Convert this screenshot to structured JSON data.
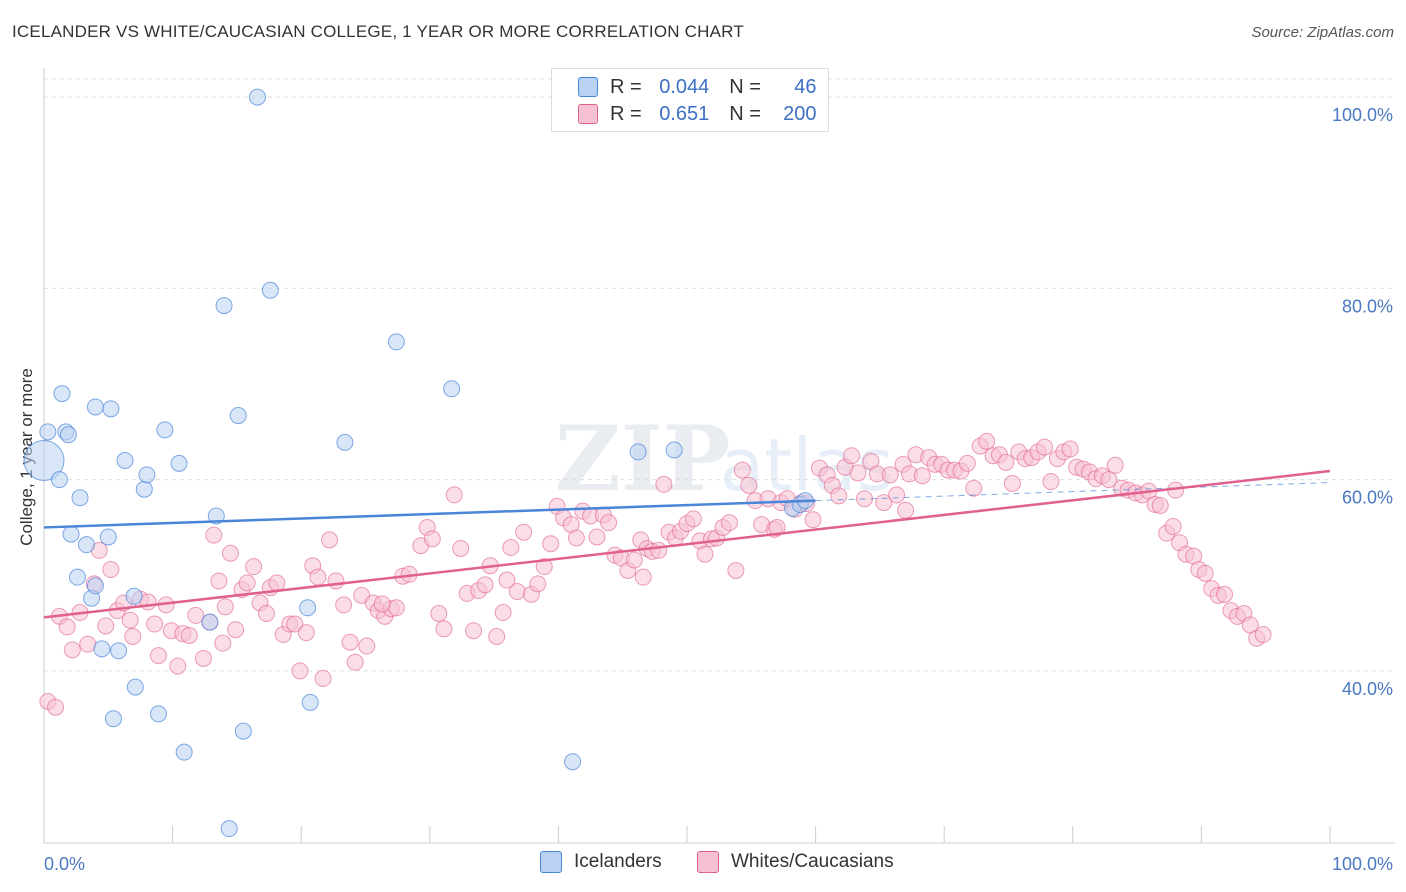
{
  "title": "ICELANDER VS WHITE/CAUCASIAN COLLEGE, 1 YEAR OR MORE CORRELATION CHART",
  "source": "Source: ZipAtlas.com",
  "colors": {
    "blue": "#4a86d8",
    "blue_fill": "#b9d1f2",
    "pink": "#e0608e",
    "pink_fill": "#f7c1d2",
    "tick_label": "#4a78c2"
  },
  "legend": {
    "blue": {
      "r_label": "R =",
      "r_value": "0.044",
      "n_label": "N =",
      "n_value": "46"
    },
    "pink": {
      "r_label": "R =",
      "r_value": "0.651",
      "n_label": "N =",
      "n_value": "200"
    }
  },
  "bottom_legend": {
    "blue": "Icelanders",
    "pink": "Whites/Caucasians"
  },
  "chart_data": {
    "type": "scatter",
    "title": "ICELANDER VS WHITE/CAUCASIAN COLLEGE, 1 YEAR OR MORE CORRELATION CHART",
    "xlabel": "",
    "ylabel": "College, 1 year or more",
    "xlim": [
      0,
      100
    ],
    "ylim": [
      22,
      102
    ],
    "x_tick_labels": [
      "0.0%",
      "100.0%"
    ],
    "y_ticks": [
      40,
      60,
      80,
      100
    ],
    "y_tick_labels": [
      "40.0%",
      "60.0%",
      "80.0%",
      "100.0%"
    ],
    "grid": true,
    "legend_position": "top-center",
    "series": [
      {
        "name": "Icelanders",
        "color": "#4a86d8",
        "r": 0.044,
        "n": 46,
        "trend": {
          "x": [
            0,
            60
          ],
          "y": [
            55.0,
            57.8
          ],
          "dashed_to": [
            100,
            59.7
          ]
        },
        "points": [
          [
            0,
            62
          ],
          [
            0.3,
            65
          ],
          [
            1.2,
            60
          ],
          [
            1.4,
            69
          ],
          [
            1.7,
            65
          ],
          [
            1.9,
            64.7
          ],
          [
            2.1,
            54.3
          ],
          [
            2.8,
            58.1
          ],
          [
            2.6,
            49.8
          ],
          [
            3.3,
            53.2
          ],
          [
            3.7,
            47.6
          ],
          [
            4.0,
            48.9
          ],
          [
            4.0,
            67.6
          ],
          [
            4.5,
            42.3
          ],
          [
            5.0,
            54.0
          ],
          [
            5.2,
            67.4
          ],
          [
            5.4,
            35.0
          ],
          [
            5.8,
            42.1
          ],
          [
            6.3,
            62.0
          ],
          [
            7.0,
            47.8
          ],
          [
            7.1,
            38.3
          ],
          [
            7.8,
            59.0
          ],
          [
            8.0,
            60.5
          ],
          [
            8.9,
            35.5
          ],
          [
            9.4,
            65.2
          ],
          [
            10.5,
            61.7
          ],
          [
            10.9,
            31.5
          ],
          [
            12.9,
            45.1
          ],
          [
            13.4,
            56.2
          ],
          [
            14.0,
            78.2
          ],
          [
            14.4,
            23.5
          ],
          [
            15.1,
            66.7
          ],
          [
            15.5,
            33.7
          ],
          [
            16.6,
            100
          ],
          [
            17.6,
            79.8
          ],
          [
            20.7,
            36.7
          ],
          [
            20.5,
            46.6
          ],
          [
            23.4,
            63.9
          ],
          [
            27.4,
            74.4
          ],
          [
            31.7,
            69.5
          ],
          [
            41.1,
            30.5
          ],
          [
            46.2,
            62.9
          ],
          [
            49.0,
            63.1
          ],
          [
            58.2,
            57.0
          ],
          [
            58.8,
            57.4
          ],
          [
            59.2,
            57.8
          ]
        ]
      },
      {
        "name": "Whites/Caucasians",
        "color": "#e0608e",
        "r": 0.651,
        "n": 200,
        "trend": {
          "x": [
            0,
            100
          ],
          "y": [
            45.6,
            60.9
          ]
        },
        "points": [
          [
            0.3,
            36.8
          ],
          [
            0.9,
            36.2
          ],
          [
            1.2,
            45.7
          ],
          [
            1.8,
            44.6
          ],
          [
            2.2,
            42.2
          ],
          [
            2.8,
            46.1
          ],
          [
            3.4,
            42.8
          ],
          [
            3.9,
            49.1
          ],
          [
            4.3,
            52.6
          ],
          [
            4.8,
            44.7
          ],
          [
            5.2,
            50.6
          ],
          [
            5.7,
            46.3
          ],
          [
            6.2,
            47.1
          ],
          [
            6.7,
            45.3
          ],
          [
            7.5,
            47.5
          ],
          [
            8.1,
            47.2
          ],
          [
            8.6,
            44.9
          ],
          [
            8.9,
            41.6
          ],
          [
            9.5,
            46.9
          ],
          [
            9.9,
            44.2
          ],
          [
            10.4,
            40.5
          ],
          [
            10.8,
            43.9
          ],
          [
            11.3,
            43.7
          ],
          [
            11.8,
            45.8
          ],
          [
            12.4,
            41.3
          ],
          [
            12.9,
            45.1
          ],
          [
            13.2,
            54.2
          ],
          [
            13.6,
            49.4
          ],
          [
            14.1,
            46.7
          ],
          [
            14.5,
            52.3
          ],
          [
            14.9,
            44.3
          ],
          [
            15.4,
            48.5
          ],
          [
            15.8,
            49.2
          ],
          [
            16.3,
            50.9
          ],
          [
            16.8,
            47.1
          ],
          [
            17.3,
            46.0
          ],
          [
            17.6,
            48.7
          ],
          [
            18.1,
            49.2
          ],
          [
            18.6,
            43.8
          ],
          [
            19.1,
            44.9
          ],
          [
            19.5,
            44.9
          ],
          [
            19.9,
            40.0
          ],
          [
            20.4,
            44.0
          ],
          [
            20.9,
            51.0
          ],
          [
            21.3,
            49.8
          ],
          [
            21.7,
            39.2
          ],
          [
            22.2,
            53.7
          ],
          [
            22.7,
            49.4
          ],
          [
            23.3,
            46.9
          ],
          [
            23.8,
            43.0
          ],
          [
            24.2,
            40.9
          ],
          [
            24.7,
            47.9
          ],
          [
            25.1,
            42.6
          ],
          [
            25.6,
            47.1
          ],
          [
            26.0,
            46.3
          ],
          [
            26.5,
            45.7
          ],
          [
            27.0,
            46.5
          ],
          [
            27.4,
            46.6
          ],
          [
            27.9,
            49.9
          ],
          [
            28.4,
            50.1
          ],
          [
            29.3,
            53.1
          ],
          [
            29.8,
            55.0
          ],
          [
            30.2,
            53.8
          ],
          [
            30.7,
            46.0
          ],
          [
            31.1,
            44.4
          ],
          [
            31.9,
            58.4
          ],
          [
            32.4,
            52.8
          ],
          [
            32.9,
            48.1
          ],
          [
            33.4,
            44.2
          ],
          [
            33.8,
            48.4
          ],
          [
            34.3,
            49.0
          ],
          [
            34.7,
            51.0
          ],
          [
            35.2,
            43.6
          ],
          [
            35.7,
            46.1
          ],
          [
            36.3,
            52.9
          ],
          [
            36.8,
            48.3
          ],
          [
            37.3,
            54.5
          ],
          [
            37.9,
            48.0
          ],
          [
            38.4,
            49.1
          ],
          [
            38.9,
            50.9
          ],
          [
            39.4,
            53.3
          ],
          [
            39.9,
            57.2
          ],
          [
            40.4,
            56.0
          ],
          [
            41.0,
            55.3
          ],
          [
            41.4,
            53.9
          ],
          [
            41.9,
            56.7
          ],
          [
            42.5,
            56.2
          ],
          [
            43.0,
            54.0
          ],
          [
            43.5,
            56.3
          ],
          [
            43.9,
            55.5
          ],
          [
            44.4,
            52.1
          ],
          [
            44.9,
            51.8
          ],
          [
            45.4,
            50.5
          ],
          [
            45.9,
            51.6
          ],
          [
            46.4,
            53.7
          ],
          [
            46.9,
            52.8
          ],
          [
            47.3,
            52.5
          ],
          [
            47.8,
            52.6
          ],
          [
            48.2,
            59.5
          ],
          [
            48.6,
            54.5
          ],
          [
            49.1,
            53.9
          ],
          [
            49.5,
            54.6
          ],
          [
            50.0,
            55.4
          ],
          [
            50.5,
            55.9
          ],
          [
            51.0,
            53.6
          ],
          [
            51.4,
            52.2
          ],
          [
            51.9,
            53.8
          ],
          [
            52.3,
            53.9
          ],
          [
            52.8,
            55.0
          ],
          [
            53.3,
            55.5
          ],
          [
            53.8,
            50.5
          ],
          [
            54.3,
            61.0
          ],
          [
            54.8,
            59.4
          ],
          [
            55.3,
            57.8
          ],
          [
            55.8,
            55.3
          ],
          [
            56.3,
            58.0
          ],
          [
            56.8,
            54.8
          ],
          [
            57.3,
            57.6
          ],
          [
            57.8,
            58.0
          ],
          [
            58.4,
            56.9
          ],
          [
            58.9,
            57.6
          ],
          [
            59.3,
            57.5
          ],
          [
            59.8,
            55.8
          ],
          [
            60.3,
            61.2
          ],
          [
            60.9,
            60.5
          ],
          [
            61.3,
            59.4
          ],
          [
            61.8,
            58.3
          ],
          [
            62.3,
            61.3
          ],
          [
            62.8,
            62.5
          ],
          [
            63.3,
            60.7
          ],
          [
            63.8,
            58.0
          ],
          [
            64.3,
            61.9
          ],
          [
            64.8,
            60.6
          ],
          [
            65.3,
            57.6
          ],
          [
            65.8,
            60.5
          ],
          [
            66.3,
            58.4
          ],
          [
            66.8,
            61.6
          ],
          [
            67.3,
            60.6
          ],
          [
            67.8,
            62.6
          ],
          [
            68.3,
            60.4
          ],
          [
            68.8,
            62.3
          ],
          [
            69.3,
            61.6
          ],
          [
            69.8,
            61.6
          ],
          [
            70.3,
            61.0
          ],
          [
            70.8,
            61.0
          ],
          [
            71.3,
            60.9
          ],
          [
            71.8,
            61.7
          ],
          [
            72.3,
            59.1
          ],
          [
            72.8,
            63.5
          ],
          [
            73.3,
            64.0
          ],
          [
            73.8,
            62.5
          ],
          [
            74.3,
            62.6
          ],
          [
            74.8,
            61.8
          ],
          [
            75.3,
            59.6
          ],
          [
            75.8,
            62.9
          ],
          [
            76.3,
            62.2
          ],
          [
            76.8,
            62.3
          ],
          [
            77.3,
            62.9
          ],
          [
            77.8,
            63.4
          ],
          [
            78.3,
            59.8
          ],
          [
            78.8,
            62.2
          ],
          [
            79.3,
            62.9
          ],
          [
            79.8,
            63.2
          ],
          [
            80.3,
            61.3
          ],
          [
            80.8,
            61.1
          ],
          [
            81.3,
            60.8
          ],
          [
            81.8,
            60.1
          ],
          [
            82.3,
            60.4
          ],
          [
            82.8,
            60.0
          ],
          [
            83.3,
            61.5
          ],
          [
            83.8,
            59.1
          ],
          [
            84.3,
            58.9
          ],
          [
            84.9,
            58.6
          ],
          [
            85.4,
            58.4
          ],
          [
            85.9,
            58.8
          ],
          [
            86.4,
            57.4
          ],
          [
            86.8,
            57.3
          ],
          [
            87.3,
            54.4
          ],
          [
            87.8,
            55.1
          ],
          [
            88.3,
            53.4
          ],
          [
            88.8,
            52.2
          ],
          [
            89.4,
            52.0
          ],
          [
            89.8,
            50.6
          ],
          [
            90.3,
            50.2
          ],
          [
            90.8,
            48.6
          ],
          [
            91.3,
            47.9
          ],
          [
            91.8,
            48.0
          ],
          [
            92.3,
            46.3
          ],
          [
            92.8,
            45.7
          ],
          [
            93.3,
            46.0
          ],
          [
            93.8,
            44.8
          ],
          [
            94.3,
            43.4
          ],
          [
            94.8,
            43.8
          ],
          [
            13.9,
            42.9
          ],
          [
            6.9,
            43.6
          ],
          [
            26.3,
            47.0
          ],
          [
            36.0,
            49.5
          ],
          [
            46.6,
            49.8
          ],
          [
            57.0,
            55.0
          ],
          [
            67.0,
            56.8
          ],
          [
            88.0,
            58.9
          ]
        ]
      }
    ]
  }
}
